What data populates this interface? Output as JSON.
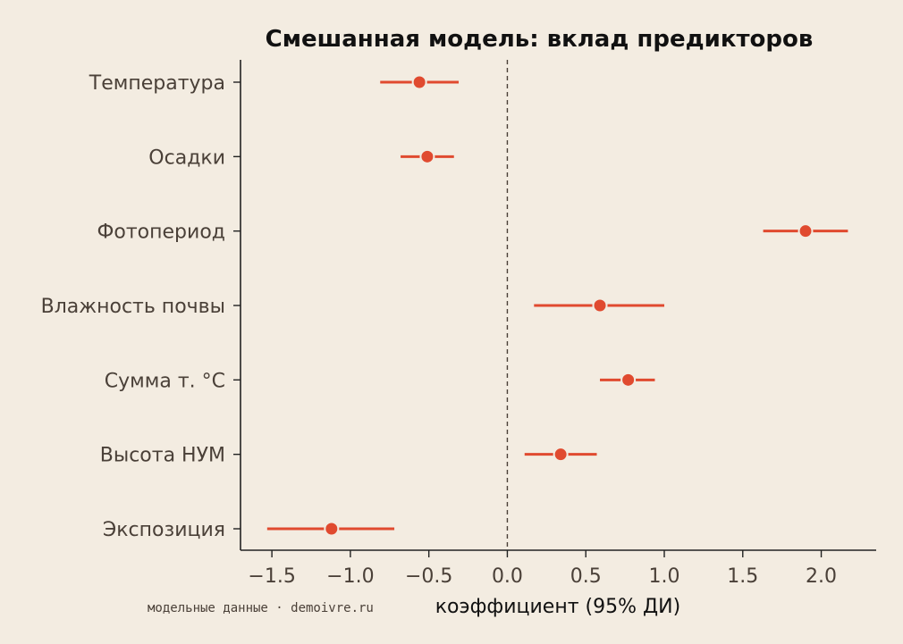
{
  "chart_data": {
    "type": "forest",
    "title": "Смешанная модель: вклад предикторов",
    "xlabel": "коэффициент (95% ДИ)",
    "ylabel": "",
    "xlim": [
      -1.7,
      2.35
    ],
    "xticks": [
      "−1.5",
      "−1.0",
      "−0.5",
      "0.0",
      "0.5",
      "1.0",
      "1.5",
      "2.0"
    ],
    "xtick_values": [
      -1.5,
      -1.0,
      -0.5,
      0.0,
      0.5,
      1.0,
      1.5,
      2.0
    ],
    "reference_line": 0.0,
    "grid": false,
    "color": "#e04a2f",
    "categories": [
      "Температура",
      "Осадки",
      "Фотопериод",
      "Влажность почвы",
      "Сумма т. °C",
      "Высота НУМ",
      "Экспозиция"
    ],
    "estimates": [
      -0.56,
      -0.51,
      1.9,
      0.59,
      0.77,
      0.34,
      -1.12
    ],
    "ci_low": [
      -0.81,
      -0.68,
      1.63,
      0.17,
      0.59,
      0.11,
      -1.53
    ],
    "ci_high": [
      -0.31,
      -0.34,
      2.17,
      1.0,
      0.94,
      0.57,
      -0.72
    ]
  },
  "credit": "модельные данные · demoivre.ru"
}
